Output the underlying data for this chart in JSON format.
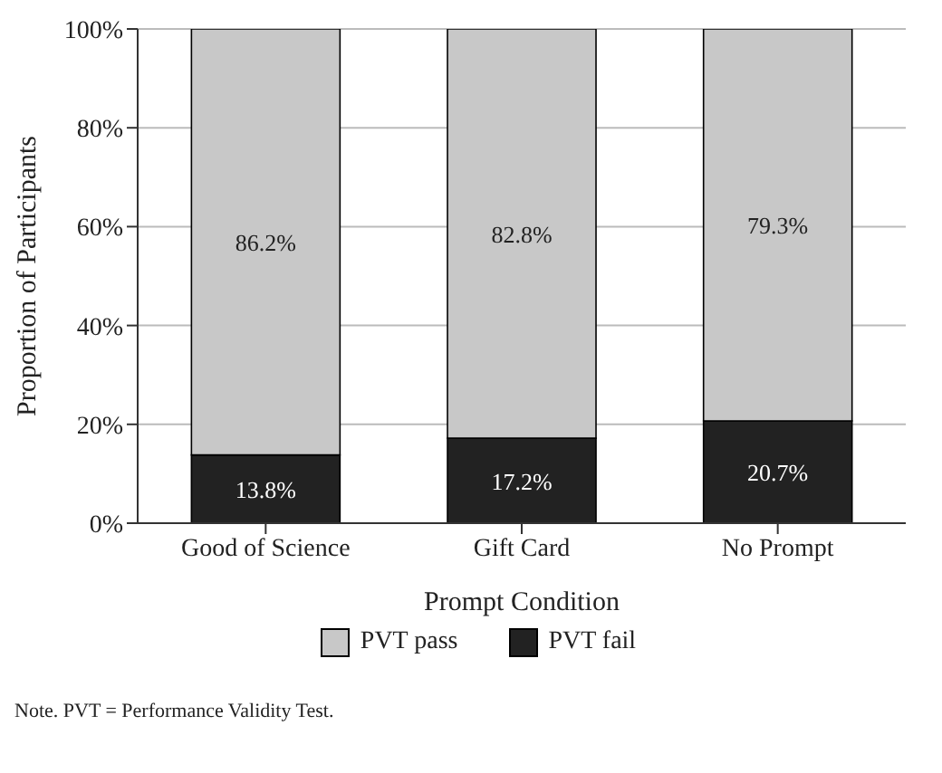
{
  "chart_data": {
    "type": "bar",
    "stacked": true,
    "categories": [
      "Good of Science",
      "Gift Card",
      "No Prompt"
    ],
    "series": [
      {
        "name": "PVT fail",
        "color": "#222222",
        "values": [
          13.8,
          17.2,
          20.7
        ],
        "value_labels": [
          "13.8%",
          "17.2%",
          "20.7%"
        ]
      },
      {
        "name": "PVT pass",
        "color": "#c8c8c8",
        "values": [
          86.2,
          82.8,
          79.3
        ],
        "value_labels": [
          "86.2%",
          "82.8%",
          "79.3%"
        ]
      }
    ],
    "xlabel": "Prompt Condition",
    "ylabel": "Proportion of Participants",
    "ylim": [
      0,
      100
    ],
    "yticks": [
      {
        "value": 0,
        "label": "0%"
      },
      {
        "value": 20,
        "label": "20%"
      },
      {
        "value": 40,
        "label": "40%"
      },
      {
        "value": 60,
        "label": "60%"
      },
      {
        "value": 80,
        "label": "80%"
      },
      {
        "value": 100,
        "label": "100%"
      }
    ],
    "grid": "y",
    "legend": "bottom",
    "annotations": [
      "Note. PVT = Performance Validity Test."
    ]
  }
}
